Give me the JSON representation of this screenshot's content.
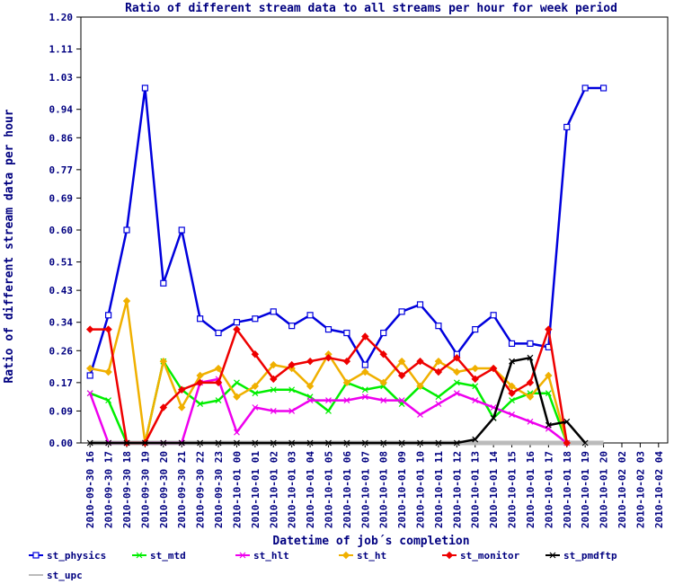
{
  "chart_data": {
    "type": "line",
    "title": "Ratio of different stream data to all streams per hour for week period",
    "xlabel": "Datetime of job´s completion",
    "ylabel": "Ratio of different stream data per hour",
    "ylim": [
      0,
      1.2
    ],
    "y_ticks": [
      "0.00",
      "0.09",
      "0.17",
      "0.26",
      "0.34",
      "0.43",
      "0.51",
      "0.60",
      "0.69",
      "0.77",
      "0.86",
      "0.94",
      "1.03",
      "1.11",
      "1.20"
    ],
    "categories": [
      "2010-09-30 16",
      "2010-09-30 17",
      "2010-09-30 18",
      "2010-09-30 19",
      "2010-09-30 20",
      "2010-09-30 21",
      "2010-09-30 22",
      "2010-09-30 23",
      "2010-10-01 00",
      "2010-10-01 01",
      "2010-10-01 02",
      "2010-10-01 03",
      "2010-10-01 04",
      "2010-10-01 05",
      "2010-10-01 06",
      "2010-10-01 07",
      "2010-10-01 08",
      "2010-10-01 09",
      "2010-10-01 10",
      "2010-10-01 11",
      "2010-10-01 12",
      "2010-10-01 13",
      "2010-10-01 14",
      "2010-10-01 15",
      "2010-10-01 16",
      "2010-10-01 17",
      "2010-10-01 18",
      "2010-10-01 19",
      "2010-10-01 20",
      "2010-10-02 02",
      "2010-10-02 03",
      "2010-10-02 04"
    ],
    "grid": false,
    "legend_position": "bottom",
    "series": [
      {
        "name": "st_physics",
        "color": "#0000dd",
        "marker": "square",
        "values": [
          0.19,
          0.36,
          0.6,
          1.0,
          0.45,
          0.6,
          0.35,
          0.31,
          0.34,
          0.35,
          0.37,
          0.33,
          0.36,
          0.32,
          0.31,
          0.22,
          0.31,
          0.37,
          0.39,
          0.33,
          0.25,
          0.32,
          0.36,
          0.28,
          0.28,
          0.27,
          0.89,
          1.0,
          1.0,
          null,
          null,
          null
        ]
      },
      {
        "name": "st_mtd",
        "color": "#00ee00",
        "marker": "x",
        "values": [
          0.14,
          0.12,
          0,
          0,
          0.23,
          0.15,
          0.11,
          0.12,
          0.17,
          0.14,
          0.15,
          0.15,
          0.13,
          0.09,
          0.17,
          0.15,
          0.16,
          0.11,
          0.16,
          0.13,
          0.17,
          0.16,
          0.07,
          0.12,
          0.14,
          0.14,
          0,
          null,
          null,
          null,
          null,
          null
        ]
      },
      {
        "name": "st_hlt",
        "color": "#ee00ee",
        "marker": "x",
        "values": [
          0.14,
          0,
          0,
          0,
          0,
          0,
          0.17,
          0.18,
          0.03,
          0.1,
          0.09,
          0.09,
          0.12,
          0.12,
          0.12,
          0.13,
          0.12,
          0.12,
          0.08,
          0.11,
          0.14,
          0.12,
          0.1,
          0.08,
          0.06,
          0.04,
          0,
          null,
          null,
          null,
          null,
          null
        ]
      },
      {
        "name": "st_ht",
        "color": "#f0b000",
        "marker": "diamond",
        "values": [
          0.21,
          0.2,
          0.4,
          0,
          0.23,
          0.1,
          0.19,
          0.21,
          0.13,
          0.16,
          0.22,
          0.21,
          0.16,
          0.25,
          0.17,
          0.2,
          0.17,
          0.23,
          0.16,
          0.23,
          0.2,
          0.21,
          0.21,
          0.16,
          0.13,
          0.19,
          0,
          null,
          null,
          null,
          null,
          null
        ]
      },
      {
        "name": "st_monitor",
        "color": "#ee0000",
        "marker": "diamond",
        "values": [
          0.32,
          0.32,
          0,
          0,
          0.1,
          0.15,
          0.17,
          0.17,
          0.32,
          0.25,
          0.18,
          0.22,
          0.23,
          0.24,
          0.23,
          0.3,
          0.25,
          0.19,
          0.23,
          0.2,
          0.24,
          0.18,
          0.21,
          0.14,
          0.17,
          0.32,
          0,
          null,
          null,
          null,
          null,
          null
        ]
      },
      {
        "name": "st_pmdftp",
        "color": "#000000",
        "marker": "x",
        "values": [
          0,
          0,
          0,
          0,
          0,
          0,
          0,
          0,
          0,
          0,
          0,
          0,
          0,
          0,
          0,
          0,
          0,
          0,
          0,
          0,
          0,
          0.01,
          0.07,
          0.23,
          0.24,
          0.05,
          0.06,
          0,
          null,
          null,
          null,
          null
        ]
      },
      {
        "name": "st_upc",
        "color": "#bbbbbb",
        "marker": "none",
        "values": [
          0,
          0,
          0,
          0,
          0,
          0,
          0,
          0,
          0,
          0,
          0,
          0,
          0,
          0,
          0,
          0,
          0,
          0,
          0,
          0,
          0,
          0,
          0,
          0,
          0,
          0,
          0,
          0,
          0,
          null,
          null,
          null
        ]
      }
    ]
  }
}
